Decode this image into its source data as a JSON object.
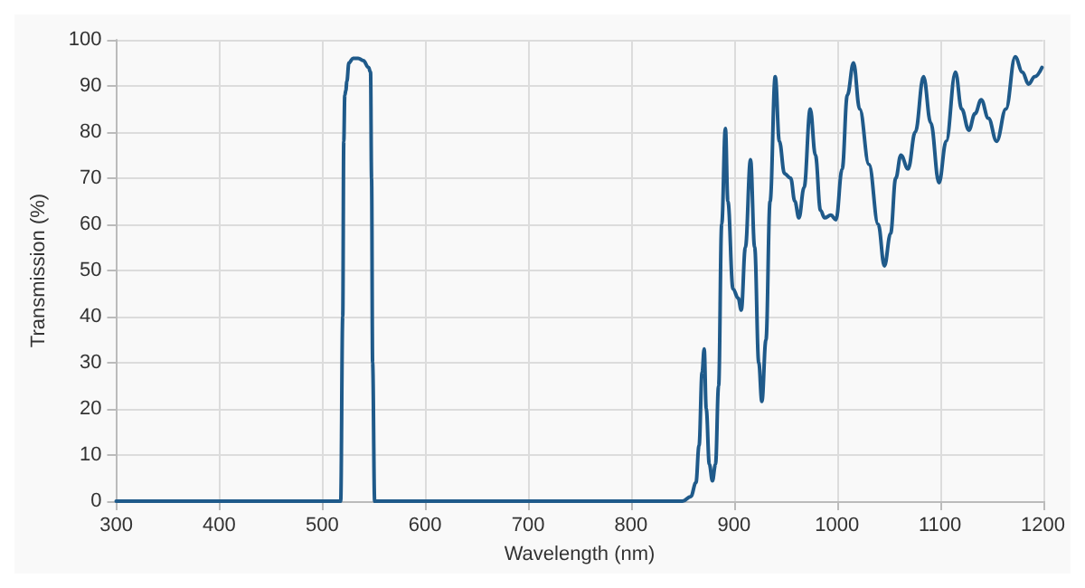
{
  "chart_data": {
    "type": "line",
    "xlabel": "Wavelength (nm)",
    "ylabel": "Transmission (%)",
    "x": [
      300,
      518,
      520,
      521,
      522,
      523,
      524,
      526,
      530,
      535,
      540,
      545,
      547,
      548,
      549,
      551,
      850,
      858,
      863,
      866,
      869,
      871,
      873,
      876,
      879,
      882,
      885,
      888,
      891.6,
      894,
      899,
      904,
      907,
      911,
      916,
      920,
      924,
      927,
      931,
      935,
      940,
      944,
      949,
      955,
      959,
      963,
      968,
      974,
      979,
      984,
      988,
      994,
      999,
      1005,
      1010,
      1016,
      1022,
      1031,
      1040,
      1046,
      1052,
      1057,
      1062,
      1069,
      1076,
      1084,
      1091,
      1099,
      1106,
      1115,
      1121,
      1128,
      1134,
      1140,
      1147,
      1155,
      1164,
      1173,
      1180,
      1186,
      1192,
      1199
    ],
    "series": [
      {
        "color": "#1f5a8a",
        "values": [
          0,
          0,
          40,
          78,
          88,
          89,
          91,
          95,
          96,
          96,
          95.5,
          94,
          93,
          70,
          30,
          0,
          0,
          1,
          4,
          12,
          28,
          33,
          20,
          8,
          4.4,
          8,
          25,
          60,
          80.8,
          65,
          46,
          44,
          41.4,
          55,
          74,
          55,
          30,
          21.6,
          35,
          65,
          92,
          78,
          71,
          70,
          65,
          61.4,
          68,
          85,
          75,
          63,
          61.4,
          62,
          61,
          72,
          88,
          95,
          85,
          73,
          60,
          51,
          58,
          70,
          75,
          72,
          80,
          92,
          82,
          69,
          78,
          93,
          85,
          80.4,
          84,
          87,
          83,
          78,
          85,
          96.3,
          93,
          90.4,
          92,
          94
        ]
      }
    ],
    "xlim": [
      300,
      1200
    ],
    "xticks": [
      300,
      400,
      500,
      600,
      700,
      800,
      900,
      1000,
      1100,
      1200
    ],
    "ylim": [
      0,
      100
    ],
    "yticks": [
      0,
      10,
      20,
      30,
      40,
      50,
      60,
      70,
      80,
      90,
      100
    ],
    "grid": true,
    "marker": "none",
    "line_style": "solid"
  }
}
